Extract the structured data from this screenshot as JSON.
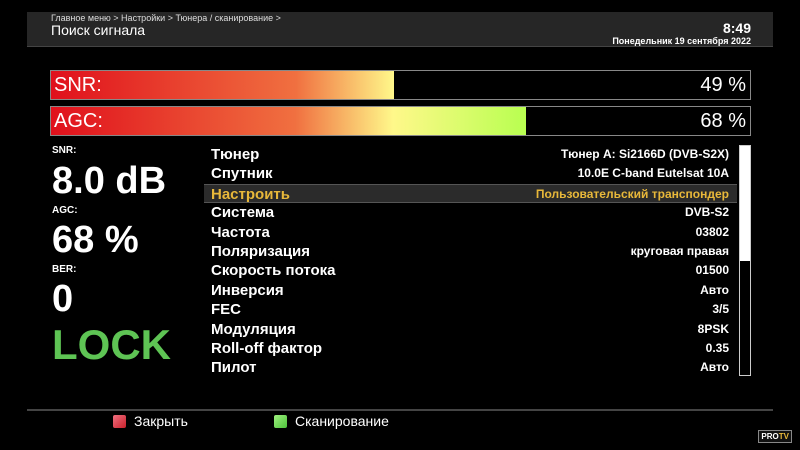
{
  "header": {
    "breadcrumb": "Главное меню > Настройки > Тюнера / сканирование >",
    "title": "Поиск сигнала",
    "time": "8:49",
    "date": "Понедельник 19 сентября 2022"
  },
  "bars": [
    {
      "label": "SNR:",
      "value_text": "49 %",
      "percent": 49
    },
    {
      "label": "AGC:",
      "value_text": "68 %",
      "percent": 68
    }
  ],
  "stats": {
    "snr_label": "SNR:",
    "snr_value": "8.0 dB",
    "agc_label": "AGC:",
    "agc_value": "68 %",
    "ber_label": "BER:",
    "ber_value": "0",
    "lock": "LOCK"
  },
  "rows": [
    {
      "key": "Тюнер",
      "value": "Тюнер A: Si2166D (DVB-S2X)"
    },
    {
      "key": "Спутник",
      "value": "10.0E C-band Eutelsat 10A"
    },
    {
      "key": "Настроить",
      "value": "Пользовательский транспондер",
      "selected": true
    },
    {
      "key": "Система",
      "value": "DVB-S2"
    },
    {
      "key": "Частота",
      "value": "03802"
    },
    {
      "key": "Поляризация",
      "value": "круговая правая"
    },
    {
      "key": "Скорость потока",
      "value": "01500"
    },
    {
      "key": "Инверсия",
      "value": "Авто"
    },
    {
      "key": "FEC",
      "value": "3/5"
    },
    {
      "key": "Модуляция",
      "value": "8PSK"
    },
    {
      "key": "Roll-off фактор",
      "value": "0.35"
    },
    {
      "key": "Пилот",
      "value": "Авто"
    }
  ],
  "scroll": {
    "thumb_fraction": 0.5
  },
  "footer": {
    "close": "Закрыть",
    "scan": "Сканирование",
    "close_color": "#c8202a",
    "scan_color": "#4cc23a",
    "logo": "PRO TV"
  },
  "colors": {
    "accent": "#e8b83a",
    "lock": "#5ec454"
  }
}
